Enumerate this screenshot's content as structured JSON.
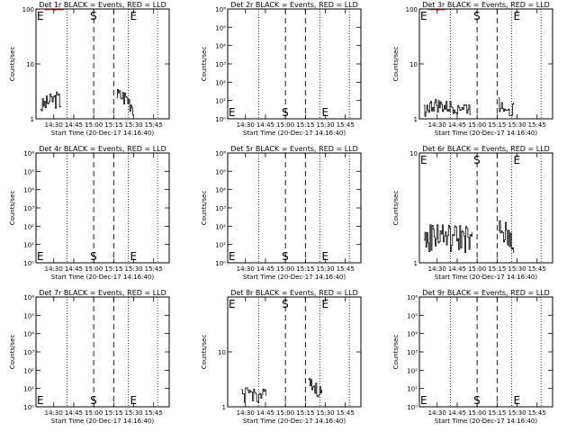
{
  "chart_data": [
    {
      "type": "line",
      "title": "Det 1r BLACK = Events, RED = LLD",
      "xlabel": "Start Time (20-Dec-17 14:16:40)",
      "ylabel": "Counts/sec",
      "yscale": "log",
      "ylim": [
        1,
        100
      ],
      "yticks": [
        "1",
        "10",
        "100"
      ],
      "xlim": [
        "14:16:40",
        "15:56:40"
      ],
      "xticks": [
        "14:30",
        "14:45",
        "15:00",
        "15:15",
        "15:30",
        "15:45"
      ],
      "markers": [
        {
          "label": "E",
          "x": "14:16:40"
        },
        {
          "label": "S",
          "x": "15:00"
        },
        {
          "label": "E",
          "x": "15:30"
        }
      ],
      "dashed_lines": [
        "15:00",
        "15:15"
      ],
      "dotted_lines": [
        "14:40",
        "15:26",
        "15:48"
      ],
      "series": [
        {
          "color": "#000000",
          "x": [
            "14:20",
            "14:28",
            "14:32",
            "14:36",
            "15:17",
            "15:24",
            "15:30"
          ],
          "y": [
            1.7,
            2.2,
            2.4,
            2.0,
            2.8,
            2.5,
            1.6
          ],
          "noise": 0.35
        },
        {
          "color": "#ff0000",
          "x": [
            "14:23",
            "14:30",
            "14:38"
          ],
          "y": [
            98,
            97,
            99
          ],
          "noise": 0.02
        }
      ]
    },
    {
      "type": "line",
      "title": "Det 2r BLACK = Events, RED = LLD",
      "xlabel": "Start Time (20-Dec-17 14:16:40)",
      "ylabel": "Counts/sec",
      "yscale": "log",
      "ylim": [
        1,
        1000000
      ],
      "yticks": [
        "10⁰",
        "10¹",
        "10²",
        "10³",
        "10⁴",
        "10⁵",
        "10⁶"
      ],
      "xlim": [
        "14:16:40",
        "15:56:40"
      ],
      "xticks": [
        "14:30",
        "14:45",
        "15:00",
        "15:15",
        "15:30",
        "15:45"
      ],
      "markers": [
        {
          "label": "E",
          "x": "14:16:40"
        },
        {
          "label": "S",
          "x": "15:00"
        },
        {
          "label": "E",
          "x": "15:30"
        }
      ],
      "dashed_lines": [
        "15:00",
        "15:15"
      ],
      "dotted_lines": [
        "14:40",
        "15:26",
        "15:48"
      ],
      "series": []
    },
    {
      "type": "line",
      "title": "Det 3r BLACK = Events, RED = LLD",
      "xlabel": "Start Time (20-Dec-17 14:16:40)",
      "ylabel": "Counts/sec",
      "yscale": "log",
      "ylim": [
        1,
        100
      ],
      "yticks": [
        "1",
        "10",
        "100"
      ],
      "xlim": [
        "14:16:40",
        "15:56:40"
      ],
      "xticks": [
        "14:30",
        "14:45",
        "15:00",
        "15:15",
        "15:30",
        "15:45"
      ],
      "markers": [
        {
          "label": "E",
          "x": "14:16:40"
        },
        {
          "label": "S",
          "x": "15:00"
        },
        {
          "label": "E",
          "x": "15:30"
        }
      ],
      "dashed_lines": [
        "15:00",
        "15:15"
      ],
      "dotted_lines": [
        "14:40",
        "15:26",
        "15:48"
      ],
      "series": [
        {
          "color": "#000000",
          "x": [
            "14:20",
            "14:28",
            "14:36",
            "14:44",
            "14:56",
            "15:16",
            "15:22",
            "15:28"
          ],
          "y": [
            1.5,
            1.8,
            1.6,
            1.7,
            1.5,
            1.9,
            1.7,
            1.5
          ],
          "noise": 0.3
        },
        {
          "color": "#ff0000",
          "x": [
            "14:23",
            "14:30",
            "14:38"
          ],
          "y": [
            98,
            96,
            99
          ],
          "noise": 0.02
        }
      ]
    },
    {
      "type": "line",
      "title": "Det 4r BLACK = Events, RED = LLD",
      "xlabel": "Start Time (20-Dec-17 14:16:40)",
      "ylabel": "Counts/sec",
      "yscale": "log",
      "ylim": [
        1,
        1000000
      ],
      "yticks": [
        "10⁰",
        "10¹",
        "10²",
        "10³",
        "10⁴",
        "10⁵",
        "10⁶"
      ],
      "xlim": [
        "14:16:40",
        "15:56:40"
      ],
      "xticks": [
        "14:30",
        "14:45",
        "15:00",
        "15:15",
        "15:30",
        "15:45"
      ],
      "markers": [
        {
          "label": "E",
          "x": "14:16:40"
        },
        {
          "label": "S",
          "x": "15:00"
        },
        {
          "label": "E",
          "x": "15:30"
        }
      ],
      "dashed_lines": [
        "15:00",
        "15:15"
      ],
      "dotted_lines": [
        "14:40",
        "15:26",
        "15:48"
      ],
      "series": []
    },
    {
      "type": "line",
      "title": "Det 5r BLACK = Events, RED = LLD",
      "xlabel": "Start Time (20-Dec-17 14:16:40)",
      "ylabel": "Counts/sec",
      "yscale": "log",
      "ylim": [
        1,
        1000000
      ],
      "yticks": [
        "10⁰",
        "10¹",
        "10²",
        "10³",
        "10⁴",
        "10⁵",
        "10⁶"
      ],
      "xlim": [
        "14:16:40",
        "15:56:40"
      ],
      "xticks": [
        "14:30",
        "14:45",
        "15:00",
        "15:15",
        "15:30",
        "15:45"
      ],
      "markers": [
        {
          "label": "E",
          "x": "14:16:40"
        },
        {
          "label": "S",
          "x": "15:00"
        },
        {
          "label": "E",
          "x": "15:30"
        }
      ],
      "dashed_lines": [
        "15:00",
        "15:15"
      ],
      "dotted_lines": [
        "14:40",
        "15:26",
        "15:48"
      ],
      "series": []
    },
    {
      "type": "line",
      "title": "Det 6r BLACK = Events, RED = LLD",
      "xlabel": "Start Time (20-Dec-17 14:16:40)",
      "ylabel": "Counts/sec",
      "yscale": "log",
      "ylim": [
        1,
        10
      ],
      "yticks": [
        "1",
        "10"
      ],
      "xlim": [
        "14:16:40",
        "15:56:40"
      ],
      "xticks": [
        "14:30",
        "14:45",
        "15:00",
        "15:15",
        "15:30",
        "15:45"
      ],
      "markers": [
        {
          "label": "E",
          "x": "14:16:40"
        },
        {
          "label": "S",
          "x": "15:00"
        },
        {
          "label": "E",
          "x": "15:30"
        }
      ],
      "dashed_lines": [
        "15:00",
        "15:15"
      ],
      "dotted_lines": [
        "14:40",
        "15:26",
        "15:48"
      ],
      "series": [
        {
          "color": "#000000",
          "x": [
            "14:20",
            "14:30",
            "14:40",
            "14:50",
            "14:57",
            "15:16",
            "15:22",
            "15:28"
          ],
          "y": [
            1.6,
            1.9,
            1.7,
            1.8,
            1.5,
            2.0,
            1.8,
            1.6
          ],
          "noise": 0.3
        }
      ]
    },
    {
      "type": "line",
      "title": "Det 7r BLACK = Events, RED = LLD",
      "xlabel": "Start Time (20-Dec-17 14:16:40)",
      "ylabel": "Counts/sec",
      "yscale": "log",
      "ylim": [
        1,
        1000000
      ],
      "yticks": [
        "10⁰",
        "10¹",
        "10²",
        "10³",
        "10⁴",
        "10⁵",
        "10⁶"
      ],
      "xlim": [
        "14:16:40",
        "15:56:40"
      ],
      "xticks": [
        "14:30",
        "14:45",
        "15:00",
        "15:15",
        "15:30",
        "15:45"
      ],
      "markers": [
        {
          "label": "E",
          "x": "14:16:40"
        },
        {
          "label": "S",
          "x": "15:00"
        },
        {
          "label": "E",
          "x": "15:30"
        }
      ],
      "dashed_lines": [
        "15:00",
        "15:15"
      ],
      "dotted_lines": [
        "14:40",
        "15:26",
        "15:48"
      ],
      "series": []
    },
    {
      "type": "line",
      "title": "Det 8r BLACK = Events, RED = LLD",
      "xlabel": "Start Time (20-Dec-17 14:16:40)",
      "ylabel": "Counts/sec",
      "yscale": "log",
      "ylim": [
        1,
        100
      ],
      "yticks": [
        "1",
        "10"
      ],
      "xlim": [
        "14:16:40",
        "15:56:40"
      ],
      "xticks": [
        "14:30",
        "14:45",
        "15:00",
        "15:15",
        "15:30",
        "15:45"
      ],
      "markers": [
        {
          "label": "E",
          "x": "14:16:40"
        },
        {
          "label": "S",
          "x": "15:00"
        },
        {
          "label": "E",
          "x": "15:30"
        }
      ],
      "dashed_lines": [
        "15:00",
        "15:15"
      ],
      "dotted_lines": [
        "14:40",
        "15:26",
        "15:48"
      ],
      "series": [
        {
          "color": "#000000",
          "x": [
            "14:27",
            "14:33",
            "14:40",
            "14:46",
            "15:17",
            "15:22",
            "15:28"
          ],
          "y": [
            1.6,
            1.8,
            1.6,
            1.7,
            2.6,
            2.2,
            1.7
          ],
          "noise": 0.3
        }
      ]
    },
    {
      "type": "line",
      "title": "Det 9r BLACK = Events, RED = LLD",
      "xlabel": "Start Time (20-Dec-17 14:16:40)",
      "ylabel": "Counts/sec",
      "yscale": "log",
      "ylim": [
        1,
        1000000
      ],
      "yticks": [
        "10⁰",
        "10¹",
        "10²",
        "10³",
        "10⁴",
        "10⁵",
        "10⁶"
      ],
      "xlim": [
        "14:16:40",
        "15:56:40"
      ],
      "xticks": [
        "14:30",
        "14:45",
        "15:00",
        "15:15",
        "15:30",
        "15:45"
      ],
      "markers": [
        {
          "label": "E",
          "x": "14:16:40"
        },
        {
          "label": "S",
          "x": "15:00"
        },
        {
          "label": "E",
          "x": "15:30"
        }
      ],
      "dashed_lines": [
        "15:00",
        "15:15"
      ],
      "dotted_lines": [
        "14:40",
        "15:26",
        "15:48"
      ],
      "series": []
    }
  ]
}
